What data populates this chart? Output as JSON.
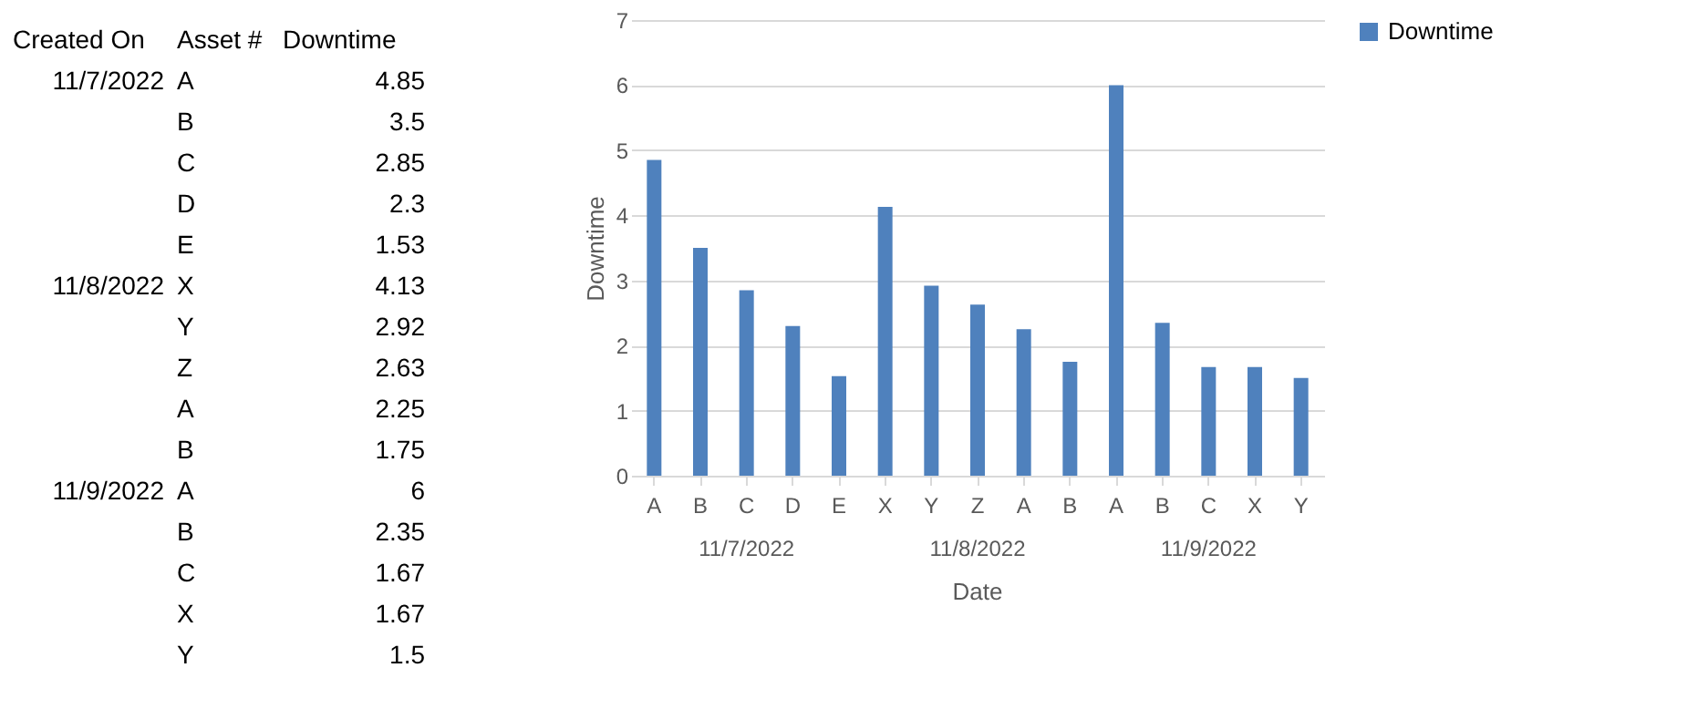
{
  "chart_data": [
    {
      "type": "other",
      "categories": [
        "A",
        "B",
        "C",
        "D",
        "E",
        "X",
        "Y",
        "Z",
        "A",
        "B",
        "A",
        "B",
        "C",
        "X",
        "Y"
      ],
      "value_labels": [
        "4.85",
        "3.5",
        "2.85",
        "2.3",
        "1.53",
        "4.13",
        "2.92",
        "2.63",
        "2.25",
        "1.75",
        "6",
        "2.35",
        "1.67",
        "1.67",
        "1.5"
      ],
      "annotations": [
        "Created On",
        "Asset #",
        "Downtime",
        "11/7/2022",
        "11/8/2022",
        "11/9/2022"
      ]
    },
    {
      "type": "bar",
      "xlabel": "Date",
      "ylabel": "Downtime",
      "categories": [
        "A",
        "B",
        "C",
        "D",
        "E",
        "X",
        "Y",
        "Z",
        "A",
        "B",
        "A",
        "B",
        "C",
        "X",
        "Y"
      ],
      "series": [
        {
          "name": "Downtime",
          "color": "#4f81bd",
          "values": [
            4.85,
            3.5,
            2.85,
            2.3,
            1.53,
            4.13,
            2.92,
            2.63,
            2.25,
            1.75,
            6,
            2.35,
            1.67,
            1.67,
            1.5
          ]
        }
      ],
      "annotations": [
        "11/7/2022",
        "11/8/2022",
        "11/9/2022"
      ],
      "ylim": [
        0,
        7
      ],
      "yticks": [
        0,
        1,
        2,
        3,
        4,
        5,
        6,
        7
      ],
      "grid": "y",
      "legend": "right"
    }
  ]
}
